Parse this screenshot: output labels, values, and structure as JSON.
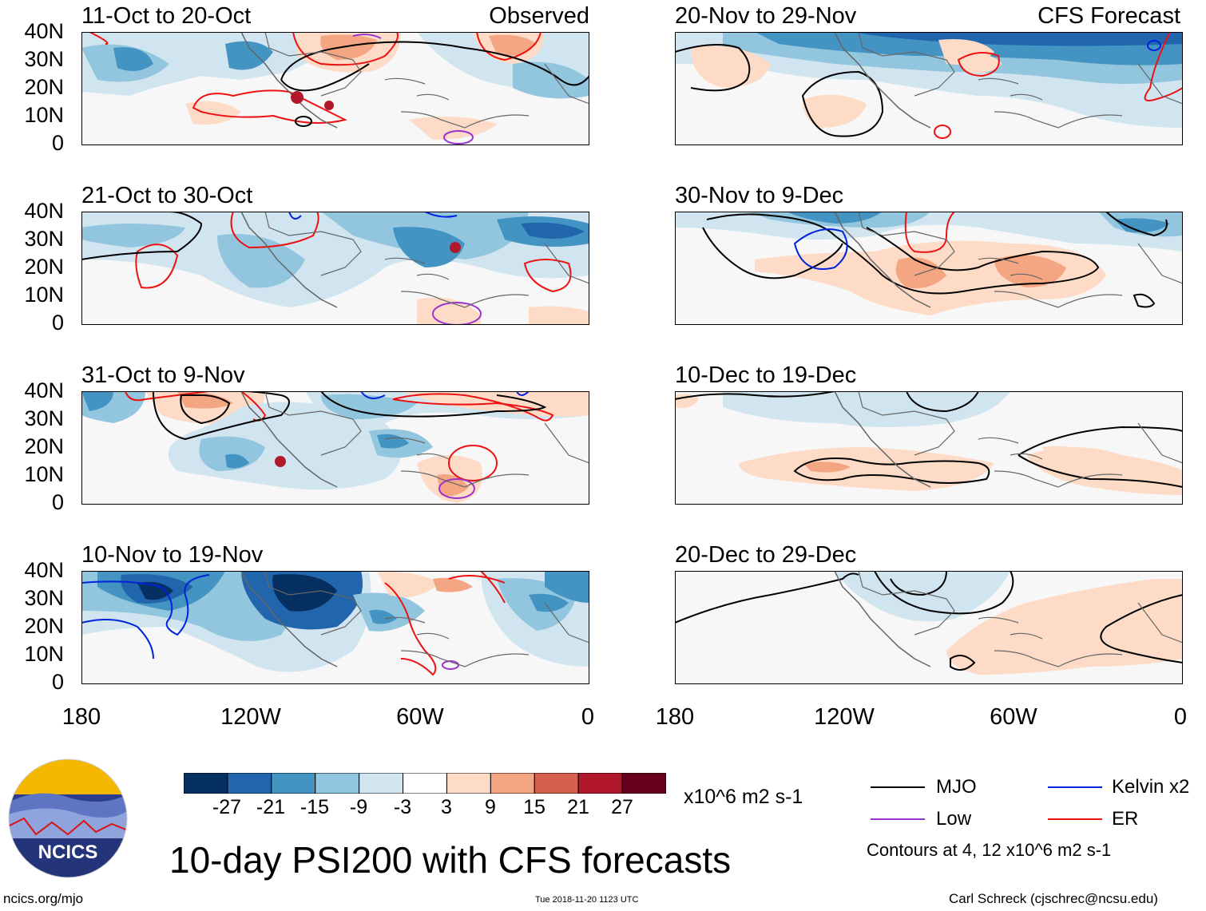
{
  "title": "10-day PSI200 with CFS forecasts",
  "labels": {
    "observed": "Observed",
    "forecast": "CFS Forecast"
  },
  "left_panels": [
    {
      "title": "11-Oct to 20-Oct"
    },
    {
      "title": "21-Oct to 30-Oct"
    },
    {
      "title": "31-Oct to 9-Nov"
    },
    {
      "title": "10-Nov to 19-Nov"
    }
  ],
  "right_panels": [
    {
      "title": "20-Nov to 29-Nov"
    },
    {
      "title": "30-Nov to 9-Dec"
    },
    {
      "title": "10-Dec to 19-Dec"
    },
    {
      "title": "20-Dec to 29-Dec"
    }
  ],
  "lat_ticks": [
    "40N",
    "30N",
    "20N",
    "10N",
    "0"
  ],
  "lon_ticks": [
    "180",
    "120W",
    "60W",
    "0"
  ],
  "colorbar": {
    "labels": [
      "-27",
      "-21",
      "-15",
      "-9",
      "-3",
      "3",
      "9",
      "15",
      "21",
      "27"
    ],
    "colors": [
      "#053061",
      "#2166ac",
      "#4393c3",
      "#92c5de",
      "#d1e5f0",
      "#ffffff",
      "#fddbc7",
      "#f4a582",
      "#d6604d",
      "#b2182b",
      "#67001f"
    ],
    "units": "x10^6 m2 s-1"
  },
  "legend": {
    "items": [
      {
        "label": "MJO",
        "color": "#000000"
      },
      {
        "label": "Kelvin x2",
        "color": "#0022dd"
      },
      {
        "label": "Low",
        "color": "#9933cc"
      },
      {
        "label": "ER",
        "color": "#ee1111"
      }
    ],
    "contour_note": "Contours at 4, 12 x10^6 m2 s-1"
  },
  "logo_text": "NCICS",
  "footer": {
    "url": "ncics.org/mjo",
    "timestamp": "Tue 2018-11-20 1123 UTC",
    "credit": "Carl Schreck (cjschrec@ncsu.edu)"
  }
}
